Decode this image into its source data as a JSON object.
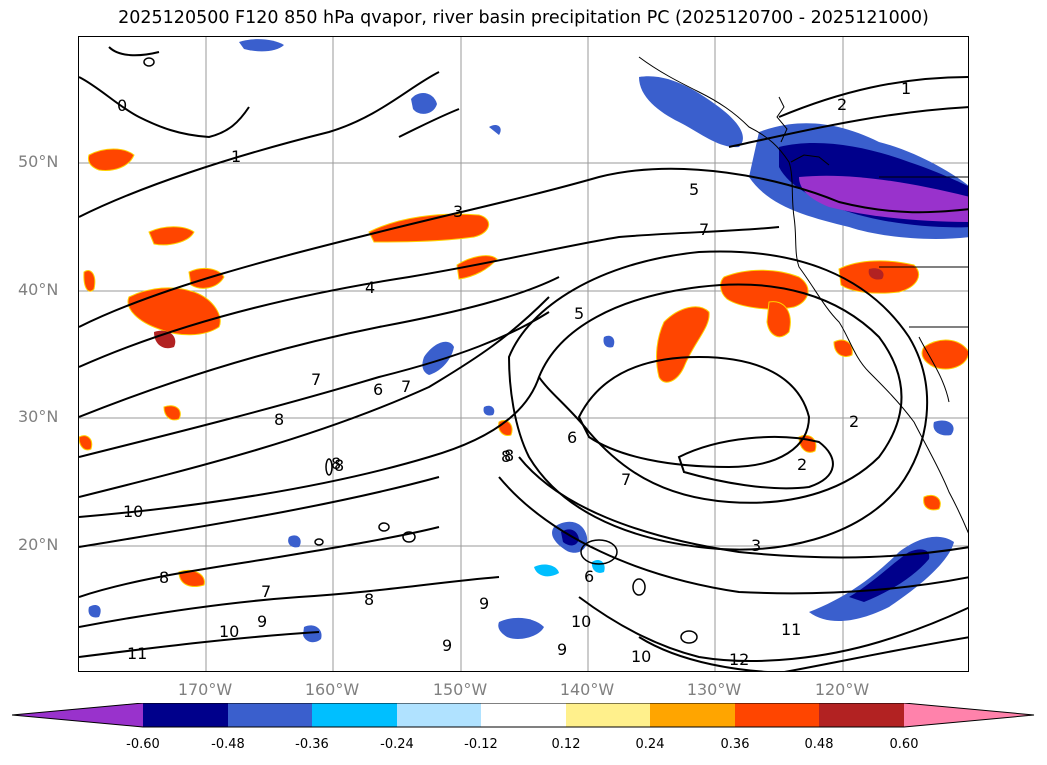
{
  "title": "2025120500 F120 850 hPa qvapor, river basin precipitation PC (2025120700 - 2025121000)",
  "latitude_labels": [
    "50°N",
    "40°N",
    "30°N",
    "20°N"
  ],
  "longitude_labels": [
    "170°W",
    "160°W",
    "150°W",
    "140°W",
    "130°W",
    "120°W"
  ],
  "colorbar": {
    "colors": [
      "#9932cc",
      "#00008b",
      "#3a5fcd",
      "#00bfff",
      "#b0e2ff",
      "#ffffff",
      "#fff08c",
      "#ffa500",
      "#ff4500",
      "#b22222",
      "#ff82ab"
    ],
    "ticks": [
      "-0.60",
      "-0.48",
      "-0.36",
      "-0.24",
      "-0.12",
      "0.12",
      "0.24",
      "0.36",
      "0.48",
      "0.60"
    ]
  },
  "contour_labels": [
    "0",
    "1",
    "1",
    "2",
    "3",
    "4",
    "5",
    "5",
    "7",
    "7",
    "6",
    "7",
    "8",
    "8",
    "8",
    "6",
    "7",
    "2",
    "2",
    "3",
    "10",
    "8",
    "7",
    "8",
    "9",
    "10",
    "11",
    "9",
    "9",
    "10",
    "9",
    "10",
    "11",
    "12",
    "6",
    "8",
    "8"
  ],
  "chart_data": {
    "type": "map",
    "variable": "850 hPa qvapor (contours, g/kg) with river basin precipitation PC (shaded)",
    "init_time": "2025120500",
    "forecast_hour": "F120",
    "valid_window": "2025120700 - 2025121000",
    "lon_range": [
      -180,
      -110
    ],
    "lat_range": [
      10,
      60
    ]
  }
}
